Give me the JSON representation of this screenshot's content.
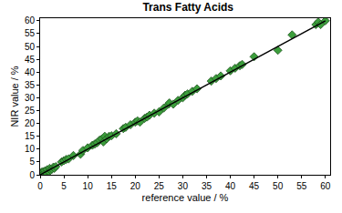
{
  "chart_data": {
    "type": "scatter",
    "title": "Trans Fatty Acids",
    "x_label": "reference value / %",
    "y_label": "NIR value / %",
    "xlim": [
      0,
      61
    ],
    "ylim": [
      0,
      61
    ],
    "xticks": [
      0,
      5,
      10,
      15,
      20,
      25,
      30,
      35,
      40,
      45,
      50,
      55,
      60
    ],
    "yticks": [
      0,
      5,
      10,
      15,
      20,
      25,
      30,
      35,
      40,
      45,
      50,
      55,
      60
    ],
    "grid": false,
    "series": [
      {
        "type": "scatter",
        "color": "#3c9e3c",
        "marker": "diamond",
        "x": [
          0,
          0.2,
          0.3,
          0.5,
          0.6,
          0.8,
          1,
          1.2,
          1.5,
          1.8,
          2,
          2.2,
          2.5,
          2.8,
          3,
          3.3,
          4.5,
          5,
          5.5,
          6,
          7,
          8.5,
          9,
          10,
          11,
          11.5,
          12,
          12.5,
          13,
          13.3,
          13.6,
          14,
          14.5,
          15,
          16,
          17.5,
          18,
          19,
          20,
          20.5,
          21,
          22,
          22.5,
          23,
          24,
          25,
          26,
          27,
          27.2,
          28,
          29,
          30,
          30.5,
          31,
          32,
          33,
          36,
          37,
          38,
          40,
          41,
          42,
          42.5,
          45,
          50,
          53,
          58,
          58.5,
          59,
          60
        ],
        "values": [
          0.5,
          0,
          1,
          0.3,
          1.2,
          0.6,
          1.5,
          0.8,
          2,
          1.2,
          2.5,
          1.8,
          2.2,
          3,
          2.5,
          3.2,
          5,
          5.5,
          6,
          6.2,
          7.5,
          8,
          9.5,
          10.5,
          11.5,
          12,
          12.5,
          13.5,
          14,
          12.8,
          15,
          14,
          15,
          15.2,
          16,
          18,
          18.5,
          19.5,
          20.5,
          21,
          20.5,
          22,
          22.5,
          23.2,
          24,
          24.5,
          26,
          27.5,
          28,
          27.5,
          29,
          30,
          31,
          31.5,
          32.5,
          33.5,
          36.5,
          37.5,
          38.5,
          40.5,
          41.5,
          42.5,
          43,
          46,
          48.5,
          54.5,
          58.5,
          59.5,
          58.5,
          60
        ]
      },
      {
        "type": "line",
        "color": "#000000",
        "line_style": "solid",
        "x": [
          0,
          60
        ],
        "values": [
          0,
          60
        ]
      }
    ]
  }
}
